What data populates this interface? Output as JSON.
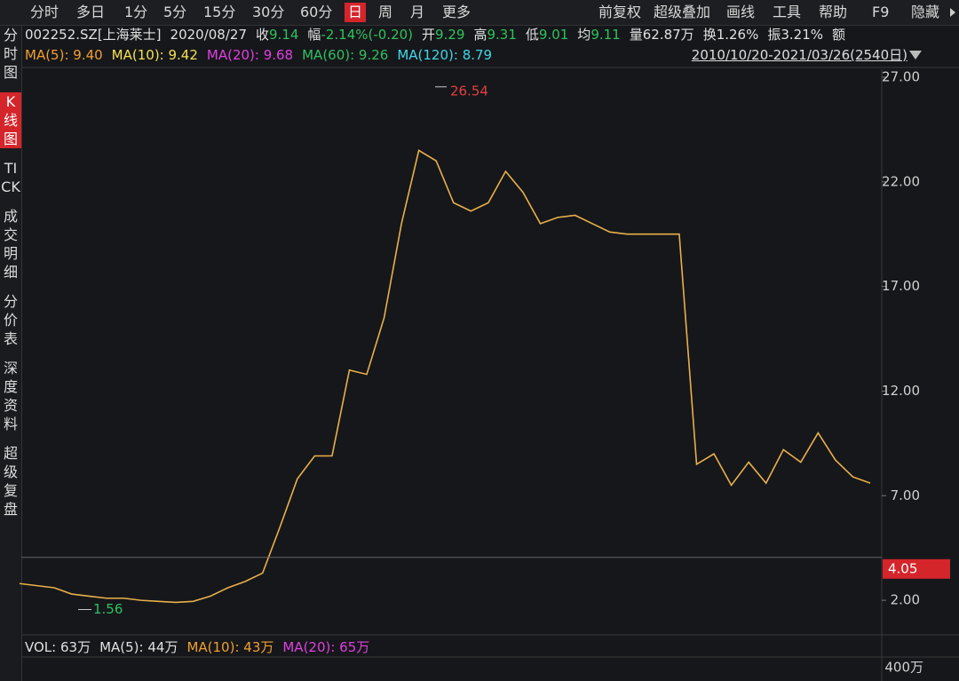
{
  "toolbar": {
    "tabs": [
      "分时",
      "多日",
      "1分",
      "5分",
      "15分",
      "30分",
      "60分",
      "日",
      "周",
      "月",
      "更多"
    ],
    "right": [
      "前复权",
      "超级叠加",
      "画线",
      "工具",
      "帮助",
      "F9",
      "隐藏"
    ]
  },
  "sidebar": [
    "分时图",
    "K线图",
    "TICK",
    "成交明细",
    "分价表",
    "深度资料",
    "超级复盘"
  ],
  "quote": [
    {
      "text": "002252.SZ[上海莱士]",
      "color": "#e0e0e0"
    },
    {
      "text": "2020/08/27",
      "color": "#e0e0e0"
    },
    {
      "label": "收",
      "text": "9.14",
      "color": "#2fc25b"
    },
    {
      "label": "幅",
      "text": "-2.14%(-0.20)",
      "color": "#2fc25b"
    },
    {
      "label": "开",
      "text": "9.29",
      "color": "#2fc25b"
    },
    {
      "label": "高",
      "text": "9.31",
      "color": "#2fc25b"
    },
    {
      "label": "低",
      "text": "9.01",
      "color": "#2fc25b"
    },
    {
      "label": "均",
      "text": "9.11",
      "color": "#2fc25b"
    },
    {
      "label": "量",
      "text": "62.87万",
      "color": "#e0e0e0"
    },
    {
      "label": "换",
      "text": "1.26%",
      "color": "#e0e0e0"
    },
    {
      "label": "振",
      "text": "3.21%",
      "color": "#e0e0e0"
    },
    {
      "label": "额",
      "text": "",
      "color": "#e0e0e0"
    }
  ],
  "ma_legend": [
    {
      "text": "MA(5): 9.40",
      "color": "#f0a030"
    },
    {
      "text": "MA(10): 9.42",
      "color": "#f5e050"
    },
    {
      "text": "MA(20): 9.68",
      "color": "#e040e0"
    },
    {
      "text": "MA(60): 9.26",
      "color": "#30c060"
    },
    {
      "text": "MA(120): 8.79",
      "color": "#40d8e8"
    }
  ],
  "range": "2010/10/20-2021/03/26(2540日)",
  "volume": {
    "legend": [
      {
        "text": "VOL: 63万",
        "color": "#e0e0e0"
      },
      {
        "text": "MA(5): 44万",
        "color": "#e0e0e0"
      },
      {
        "text": "MA(10): 43万",
        "color": "#f0a030"
      },
      {
        "text": "MA(20): 65万",
        "color": "#e040e0"
      }
    ],
    "tick": "400万"
  },
  "chart_data": {
    "type": "line",
    "color": "#e8b04a",
    "values": [
      2.8,
      2.7,
      2.6,
      2.3,
      2.2,
      2.1,
      2.1,
      2.0,
      1.95,
      1.9,
      1.95,
      2.2,
      2.6,
      2.9,
      3.3,
      5.5,
      7.8,
      8.9,
      8.9,
      13.0,
      12.8,
      15.5,
      20.0,
      23.5,
      23.0,
      21.0,
      20.6,
      21.0,
      22.5,
      21.5,
      20.0,
      20.3,
      20.4,
      20.0,
      19.6,
      19.5,
      19.5,
      19.5,
      19.5,
      8.5,
      9.0,
      7.5,
      8.6,
      7.6,
      9.2,
      8.6,
      10.0,
      8.7,
      7.9,
      7.6
    ],
    "ylim": [
      0.35,
      27.38
    ],
    "yticks": [
      {
        "value": 27,
        "label": "27.00"
      },
      {
        "value": 22,
        "label": "22.00"
      },
      {
        "value": 17,
        "label": "17.00"
      },
      {
        "value": 12,
        "label": "12.00"
      },
      {
        "value": 7,
        "label": "7.00"
      },
      {
        "value": 2,
        "label": "2.00"
      }
    ],
    "high": 26.54,
    "low": 1.56,
    "cursor_price": 4.05
  }
}
